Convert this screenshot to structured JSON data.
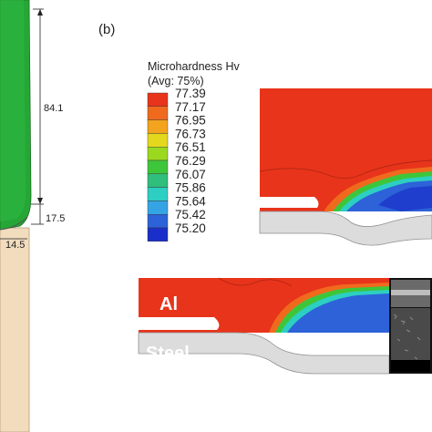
{
  "panel_label": "(b)",
  "legend": {
    "title_line1": "Microhardness Hv",
    "title_line2": "(Avg: 75%)",
    "values": [
      "77.39",
      "77.17",
      "76.95",
      "76.73",
      "76.51",
      "76.29",
      "76.07",
      "75.86",
      "75.64",
      "75.42",
      "75.20"
    ],
    "colors": [
      "#e8341b",
      "#f06a1e",
      "#f3a31d",
      "#e4d81e",
      "#9ad91f",
      "#3ec63a",
      "#2fbe7c",
      "#2ccfc2",
      "#35a4e5",
      "#2d62d8",
      "#1a2fc9"
    ]
  },
  "dimensions": {
    "upper": "84.1",
    "middle": "17.5",
    "lower": "14.5"
  },
  "materials": {
    "top": "Al",
    "bottom": "Steel"
  },
  "colors": {
    "aluminium": "#e8341b",
    "steel_sheet": "#dcdcdc",
    "electrode_green": "#25a735",
    "sleeve_tan": "#f2dcbe"
  }
}
